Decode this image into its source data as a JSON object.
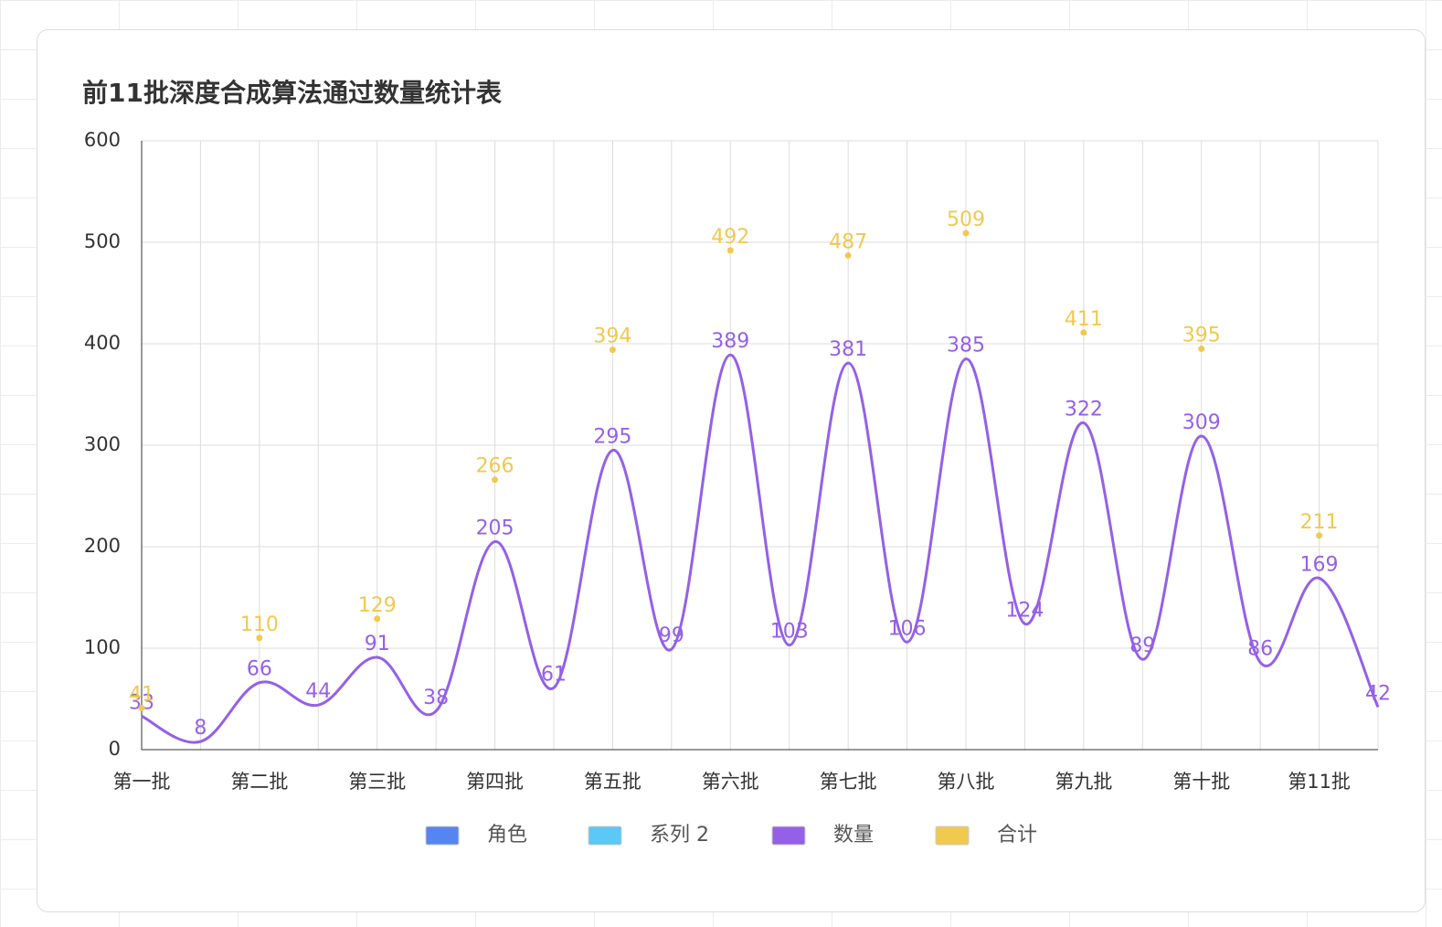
{
  "chart_data": {
    "type": "line",
    "title": "前11批深度合成算法通过数量统计表",
    "categories": [
      "第一批",
      null,
      "第二批",
      null,
      "第三批",
      null,
      "第四批",
      null,
      "第五批",
      null,
      "第六批",
      null,
      "第七批",
      null,
      "第八批",
      null,
      "第九批",
      null,
      "第十批",
      null,
      "第11批",
      null
    ],
    "series": [
      {
        "name": "角色",
        "color": "#5585f0",
        "values": [
          null,
          null,
          null,
          null,
          null,
          null,
          null,
          null,
          null,
          null,
          null,
          null,
          null,
          null,
          null,
          null,
          null,
          null,
          null,
          null,
          null,
          null
        ]
      },
      {
        "name": "系列 2",
        "color": "#5bc8f5",
        "values": [
          null,
          null,
          null,
          null,
          null,
          null,
          null,
          null,
          null,
          null,
          null,
          null,
          null,
          null,
          null,
          null,
          null,
          null,
          null,
          null,
          null,
          null
        ]
      },
      {
        "name": "数量",
        "color": "#9460e8",
        "values": [
          33,
          8,
          66,
          44,
          91,
          38,
          205,
          61,
          295,
          99,
          389,
          103,
          381,
          106,
          385,
          124,
          322,
          89,
          309,
          86,
          169,
          42
        ]
      },
      {
        "name": "合计",
        "color": "#f0c94f",
        "values": [
          41,
          null,
          110,
          null,
          129,
          null,
          266,
          null,
          394,
          null,
          492,
          null,
          487,
          null,
          509,
          null,
          411,
          null,
          395,
          null,
          211,
          null
        ]
      }
    ],
    "ylim": [
      0,
      600
    ],
    "yticks": [
      0,
      100,
      200,
      300,
      400,
      500,
      600
    ],
    "grid": true,
    "smooth": true
  }
}
